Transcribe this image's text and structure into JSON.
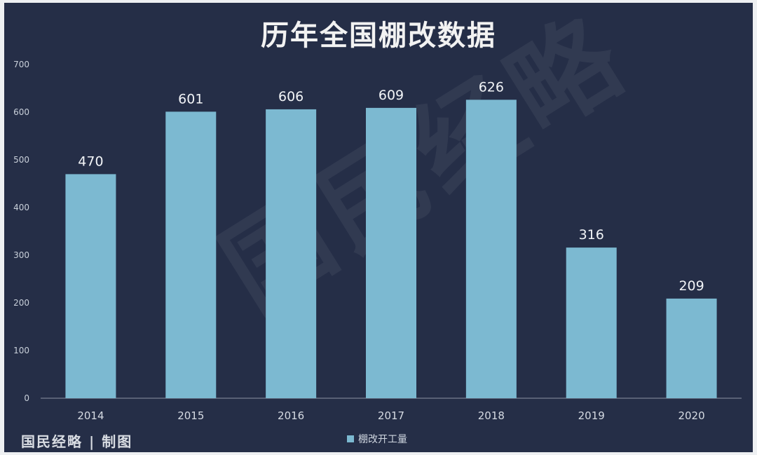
{
  "chart_data": {
    "type": "bar",
    "title": "历年全国棚改数据",
    "categories": [
      "2014",
      "2015",
      "2016",
      "2017",
      "2018",
      "2019",
      "2020"
    ],
    "series": [
      {
        "name": "棚改开工量",
        "values": [
          470,
          601,
          606,
          609,
          626,
          316,
          209
        ]
      }
    ],
    "data_labels": [
      "470",
      "601",
      "606",
      "609",
      "626",
      "316",
      "209"
    ],
    "ylim": [
      0,
      700
    ],
    "yticks": [
      0,
      100,
      200,
      300,
      400,
      500,
      600,
      700
    ],
    "legend_position": "bottom",
    "grid": false,
    "bar_color": "#7cb9d1",
    "background_color": "#252e47"
  },
  "footer": {
    "credit": "国民经略 | 制图"
  },
  "watermark": {
    "text": "国民经略"
  }
}
